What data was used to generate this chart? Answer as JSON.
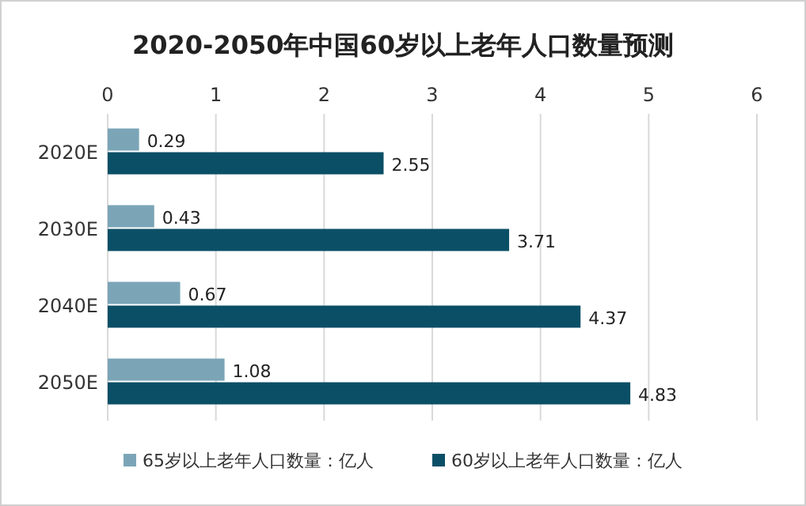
{
  "chart_data": {
    "type": "bar",
    "orientation": "horizontal",
    "title": "2020-2050年中国60岁以上老年人口数量预测",
    "categories": [
      "2020E",
      "2030E",
      "2040E",
      "2050E"
    ],
    "series": [
      {
        "name": "65岁以上老年人口数量：亿人",
        "color": "#7ba5b7",
        "values": [
          0.29,
          0.43,
          0.67,
          1.08
        ]
      },
      {
        "name": "60岁以上老年人口数量：亿人",
        "color": "#0b4f66",
        "values": [
          2.55,
          3.71,
          4.37,
          4.83
        ]
      }
    ],
    "xlim": [
      0,
      6
    ],
    "xticks": [
      0,
      1,
      2,
      3,
      4,
      5,
      6
    ],
    "grid": "x",
    "legend": "bottom",
    "data_labels": true
  }
}
